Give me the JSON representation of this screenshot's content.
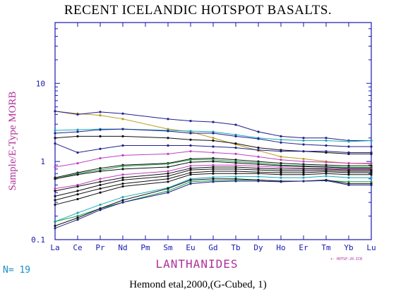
{
  "title": "RECENT ICELANDIC HOTSPOT BASALTS.",
  "footer": "Hemond etal,2000,(G-Cubed, 1)",
  "sample_count": "N= 19",
  "file_tag": "+- HOTSP-20.ICB",
  "colors": {
    "axis": "#1818b0",
    "ylabel": "#b0309a",
    "xlabel": "#b0309a",
    "tag": "#b0309a",
    "n_label": "#1a8fc4"
  },
  "chart_data": {
    "type": "line",
    "title": "RECENT ICELANDIC HOTSPOT BASALTS.",
    "xlabel": "LANTHANIDES",
    "ylabel": "Sample/E-Type MORB",
    "yscale": "log",
    "ylim": [
      0.1,
      60
    ],
    "y_ticks": [
      {
        "v": 0.1,
        "label": "0.1"
      },
      {
        "v": 1,
        "label": "1"
      },
      {
        "v": 10,
        "label": "10"
      }
    ],
    "categories": [
      "La",
      "Ce",
      "Pr",
      "Nd",
      "Pm",
      "Sm",
      "Eu",
      "Gd",
      "Tb",
      "Dy",
      "Ho",
      "Er",
      "Tm",
      "Yb",
      "Lu"
    ],
    "series": [
      {
        "color": "#b89a1c",
        "values": [
          4.4,
          4.1,
          3.9,
          3.5,
          null,
          2.6,
          2.4,
          2.0,
          1.65,
          1.38,
          1.15,
          1.08,
          1.0,
          0.95,
          0.93
        ]
      },
      {
        "color": "#20208c",
        "values": [
          4.4,
          4.0,
          4.3,
          4.1,
          null,
          3.5,
          3.3,
          3.2,
          2.95,
          2.4,
          2.1,
          2.0,
          2.0,
          1.85,
          1.85
        ]
      },
      {
        "color": "#1aa8b8",
        "values": [
          2.5,
          2.55,
          2.6,
          2.6,
          null,
          2.5,
          2.45,
          2.4,
          2.2,
          2.0,
          1.9,
          1.85,
          1.85,
          1.8,
          1.85
        ]
      },
      {
        "color": "#20208c",
        "values": [
          2.3,
          2.4,
          2.55,
          2.6,
          null,
          2.45,
          2.3,
          2.3,
          2.1,
          1.95,
          1.75,
          1.65,
          1.6,
          1.55,
          1.55
        ]
      },
      {
        "color": "#111111",
        "values": [
          2.0,
          2.1,
          2.1,
          2.1,
          null,
          2.0,
          1.9,
          1.85,
          1.7,
          1.5,
          1.4,
          1.35,
          1.3,
          1.25,
          1.25
        ]
      },
      {
        "color": "#20208c",
        "values": [
          1.7,
          1.3,
          1.45,
          1.6,
          null,
          1.6,
          1.6,
          1.55,
          1.5,
          1.4,
          1.35,
          1.35,
          1.35,
          1.3,
          1.3
        ]
      },
      {
        "color": "#c040c0",
        "values": [
          0.85,
          0.95,
          1.1,
          1.2,
          null,
          1.25,
          1.35,
          1.3,
          1.25,
          1.15,
          1.05,
          1.0,
          0.98,
          0.95,
          0.95
        ]
      },
      {
        "color": "#111111",
        "values": [
          0.62,
          0.72,
          0.82,
          0.9,
          null,
          0.95,
          1.08,
          1.1,
          1.05,
          1.0,
          0.95,
          0.92,
          0.9,
          0.88,
          0.88
        ]
      },
      {
        "color": "#1a9a4a",
        "values": [
          0.6,
          0.7,
          0.78,
          0.87,
          null,
          0.93,
          1.05,
          1.05,
          1.0,
          0.96,
          0.9,
          0.88,
          0.86,
          0.84,
          0.84
        ]
      },
      {
        "color": "#111111",
        "values": [
          0.6,
          0.68,
          0.75,
          0.8,
          null,
          0.85,
          0.98,
          1.0,
          0.96,
          0.92,
          0.88,
          0.86,
          0.85,
          0.82,
          0.82
        ]
      },
      {
        "color": "#c040c0",
        "values": [
          0.45,
          0.5,
          0.6,
          0.68,
          null,
          0.75,
          0.88,
          0.9,
          0.9,
          0.87,
          0.84,
          0.82,
          0.82,
          0.8,
          0.8
        ]
      },
      {
        "color": "#111111",
        "values": [
          0.42,
          0.48,
          0.55,
          0.62,
          null,
          0.7,
          0.82,
          0.85,
          0.85,
          0.82,
          0.8,
          0.8,
          0.8,
          0.78,
          0.78
        ]
      },
      {
        "color": "#111111",
        "values": [
          0.36,
          0.42,
          0.5,
          0.58,
          null,
          0.65,
          0.78,
          0.8,
          0.8,
          0.78,
          0.76,
          0.76,
          0.77,
          0.75,
          0.75
        ]
      },
      {
        "color": "#111111",
        "values": [
          0.32,
          0.38,
          0.45,
          0.52,
          null,
          0.6,
          0.72,
          0.75,
          0.75,
          0.73,
          0.72,
          0.72,
          0.74,
          0.72,
          0.72
        ]
      },
      {
        "color": "#111111",
        "values": [
          0.28,
          0.33,
          0.4,
          0.48,
          null,
          0.55,
          0.68,
          0.7,
          0.7,
          0.7,
          0.68,
          0.68,
          0.7,
          0.68,
          0.68
        ]
      },
      {
        "color": "#1aa8b8",
        "values": [
          0.17,
          0.22,
          0.28,
          0.35,
          null,
          0.46,
          0.6,
          0.63,
          0.64,
          0.64,
          0.62,
          0.62,
          0.65,
          0.62,
          0.62
        ]
      },
      {
        "color": "#1a9a4a",
        "values": [
          0.17,
          0.2,
          0.25,
          0.3,
          null,
          0.42,
          0.55,
          0.57,
          0.58,
          0.58,
          0.56,
          0.56,
          0.57,
          0.55,
          0.55
        ]
      },
      {
        "color": "#111111",
        "values": [
          0.15,
          0.19,
          0.25,
          0.32,
          null,
          0.45,
          0.58,
          0.6,
          0.6,
          0.58,
          0.56,
          0.56,
          0.58,
          0.52,
          0.52
        ]
      },
      {
        "color": "#20208c",
        "values": [
          0.14,
          0.18,
          0.24,
          0.3,
          null,
          0.4,
          0.52,
          0.55,
          0.56,
          0.56,
          0.55,
          0.56,
          0.57,
          0.5,
          0.5
        ]
      }
    ]
  }
}
